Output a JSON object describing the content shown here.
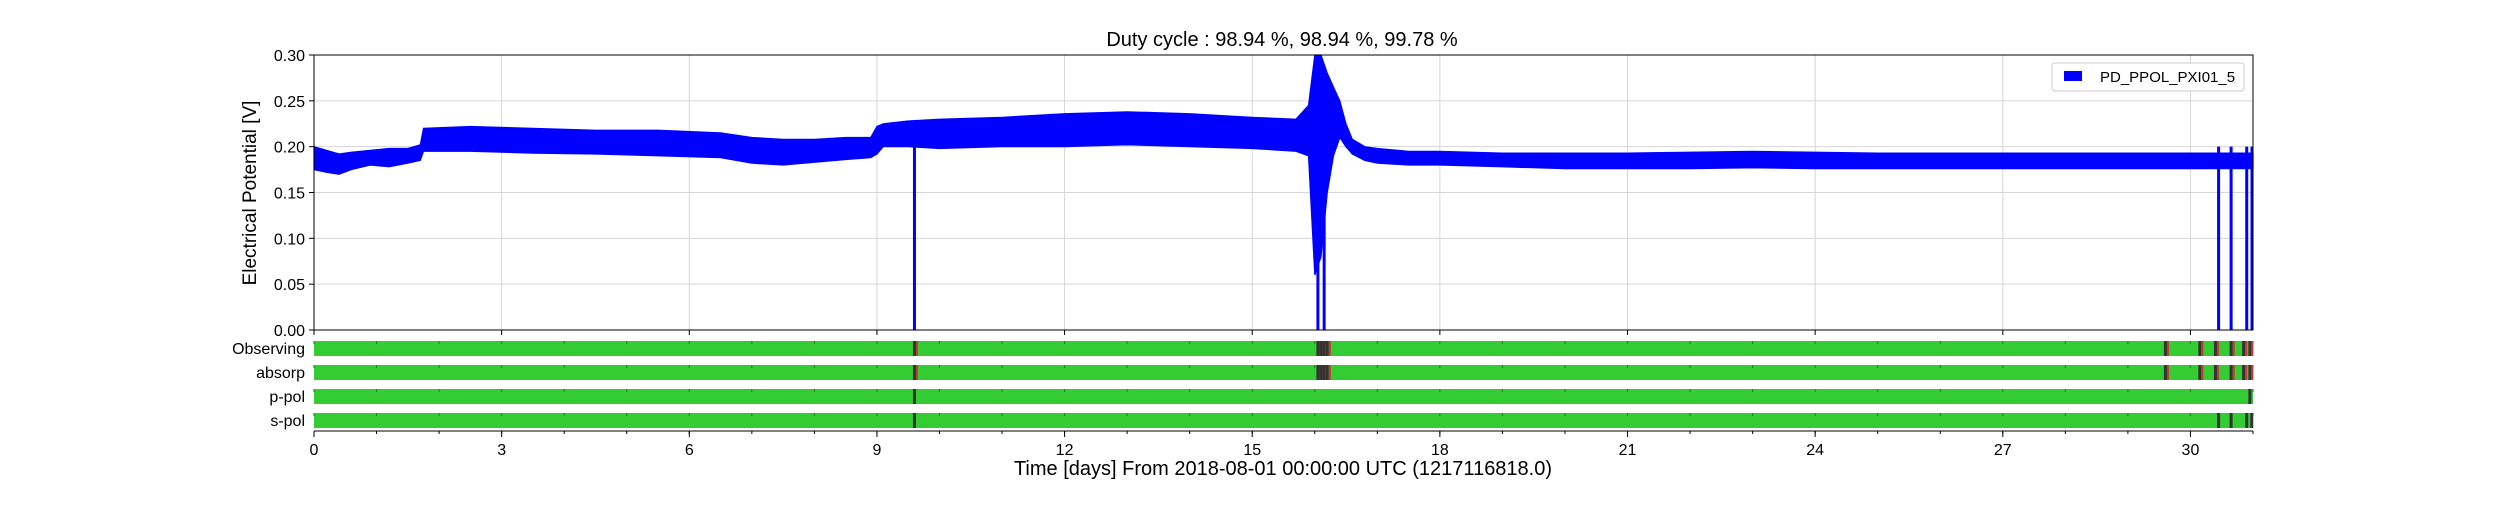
{
  "chart_data": {
    "type": "line",
    "title": "Duty cycle : 98.94 %, 98.94 %, 99.78 %",
    "xlabel": "Time [days] From 2018-08-01 00:00:00 UTC (1217116818.0)",
    "ylabel": "Electrical Potential [V]",
    "xlim": [
      0,
      31
    ],
    "ylim": [
      0,
      0.3
    ],
    "x_ticks": [
      0,
      3,
      6,
      9,
      12,
      15,
      18,
      21,
      24,
      27,
      30
    ],
    "x_tick_labels": [
      "0",
      "3",
      "6",
      "9",
      "12",
      "15",
      "18",
      "21",
      "24",
      "27",
      "30"
    ],
    "y_ticks": [
      0,
      0.05,
      0.1,
      0.15,
      0.2,
      0.25,
      0.3
    ],
    "y_tick_labels": [
      "0.00",
      "0.05",
      "0.10",
      "0.15",
      "0.20",
      "0.25",
      "0.30"
    ],
    "grid": true,
    "legend": {
      "placement": "top-right",
      "entries": [
        "PD_PPOL_PXI01_5"
      ]
    },
    "series": [
      {
        "name": "PD_PPOL_PXI01_5",
        "color": "#0000ff",
        "x": [
          0,
          0.2,
          0.4,
          0.6,
          0.9,
          1.2,
          1.5,
          1.7,
          1.75,
          2.5,
          3.5,
          4.5,
          5.5,
          6.5,
          7.0,
          7.5,
          8.0,
          8.5,
          8.9,
          9.0,
          9.1,
          9.5,
          10.0,
          11.0,
          12.0,
          13.0,
          14.0,
          15.0,
          15.7,
          15.9,
          16.0,
          16.1,
          16.2,
          16.3,
          16.4,
          16.5,
          16.6,
          16.8,
          17.0,
          17.5,
          18.0,
          19.0,
          20.0,
          21.0,
          22.0,
          23.0,
          24.0,
          25.0,
          26.0,
          27.0,
          28.0,
          29.0,
          30.0,
          31.0
        ],
        "lower": [
          0.175,
          0.172,
          0.17,
          0.175,
          0.18,
          0.178,
          0.182,
          0.185,
          0.195,
          0.195,
          0.193,
          0.192,
          0.19,
          0.188,
          0.182,
          0.18,
          0.183,
          0.186,
          0.188,
          0.192,
          0.2,
          0.2,
          0.198,
          0.2,
          0.2,
          0.202,
          0.2,
          0.198,
          0.195,
          0.19,
          0.06,
          0.08,
          0.15,
          0.19,
          0.21,
          0.2,
          0.192,
          0.185,
          0.182,
          0.18,
          0.18,
          0.178,
          0.176,
          0.176,
          0.176,
          0.177,
          0.176,
          0.176,
          0.176,
          0.176,
          0.176,
          0.176,
          0.176,
          0.176
        ],
        "upper": [
          0.2,
          0.196,
          0.192,
          0.194,
          0.196,
          0.198,
          0.198,
          0.202,
          0.22,
          0.222,
          0.22,
          0.218,
          0.218,
          0.215,
          0.21,
          0.208,
          0.208,
          0.21,
          0.21,
          0.222,
          0.225,
          0.228,
          0.23,
          0.232,
          0.236,
          0.238,
          0.236,
          0.232,
          0.23,
          0.245,
          0.3,
          0.3,
          0.28,
          0.265,
          0.25,
          0.225,
          0.208,
          0.2,
          0.198,
          0.195,
          0.195,
          0.193,
          0.193,
          0.193,
          0.194,
          0.195,
          0.194,
          0.193,
          0.193,
          0.193,
          0.193,
          0.193,
          0.193,
          0.193
        ],
        "dropouts": [
          {
            "x": 9.6,
            "min": 0.0
          },
          {
            "x": 16.05,
            "min": 0.0
          },
          {
            "x": 16.15,
            "min": 0.0
          },
          {
            "x": 30.45,
            "min": 0.0
          },
          {
            "x": 30.65,
            "min": 0.0
          },
          {
            "x": 30.9,
            "min": 0.0
          }
        ]
      }
    ],
    "state_bars": [
      {
        "label": "Observing",
        "on_color": "#33cc33",
        "off_color": "#cc3333",
        "marks": [
          9.6,
          16.05,
          16.1,
          16.15,
          16.2,
          29.6,
          30.15,
          30.4,
          30.65,
          30.85,
          30.95
        ]
      },
      {
        "label": "absorp",
        "on_color": "#33cc33",
        "off_color": "#cc3333",
        "marks": [
          9.6,
          16.05,
          16.1,
          16.15,
          16.2,
          29.6,
          30.15,
          30.4,
          30.65,
          30.85,
          30.95
        ]
      },
      {
        "label": "p-pol",
        "on_color": "#33cc33",
        "off_color": "#cc3333",
        "marks": [
          9.6,
          30.95
        ]
      },
      {
        "label": "s-pol",
        "on_color": "#33cc33",
        "off_color": "#cc3333",
        "marks": [
          9.6,
          30.45,
          30.65,
          30.9,
          30.98
        ]
      }
    ]
  }
}
